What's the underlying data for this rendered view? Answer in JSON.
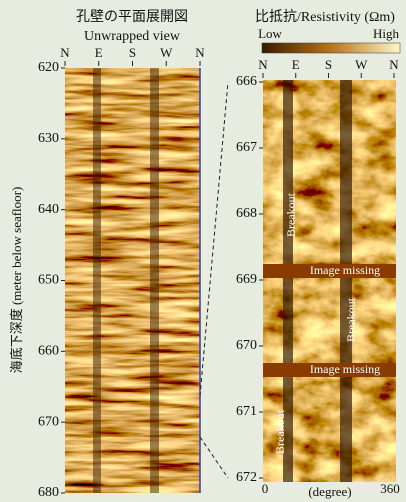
{
  "left_panel": {
    "title": "孔壁の平面展開図",
    "subtitle": "Unwrapped view",
    "compass": [
      "N",
      "E",
      "S",
      "W",
      "N"
    ],
    "depth_ticks": [
      620,
      630,
      640,
      650,
      660,
      670,
      680
    ],
    "axis_label": "海底下深度 (meter below seafloor)"
  },
  "right_panel": {
    "title": "比抵抗/Resistivity (Ωm)",
    "colorbar": {
      "low": "Low",
      "high": "High"
    },
    "compass": [
      "N",
      "E",
      "S",
      "W",
      "N"
    ],
    "depth_ticks": [
      666,
      667,
      668,
      669,
      670,
      671,
      672
    ],
    "x_start": 0,
    "x_label": "(degree)",
    "x_end": 360,
    "annotations": [
      "Breakout",
      "Image missing",
      "Breakout",
      "Image missing",
      "Breakout"
    ]
  }
}
